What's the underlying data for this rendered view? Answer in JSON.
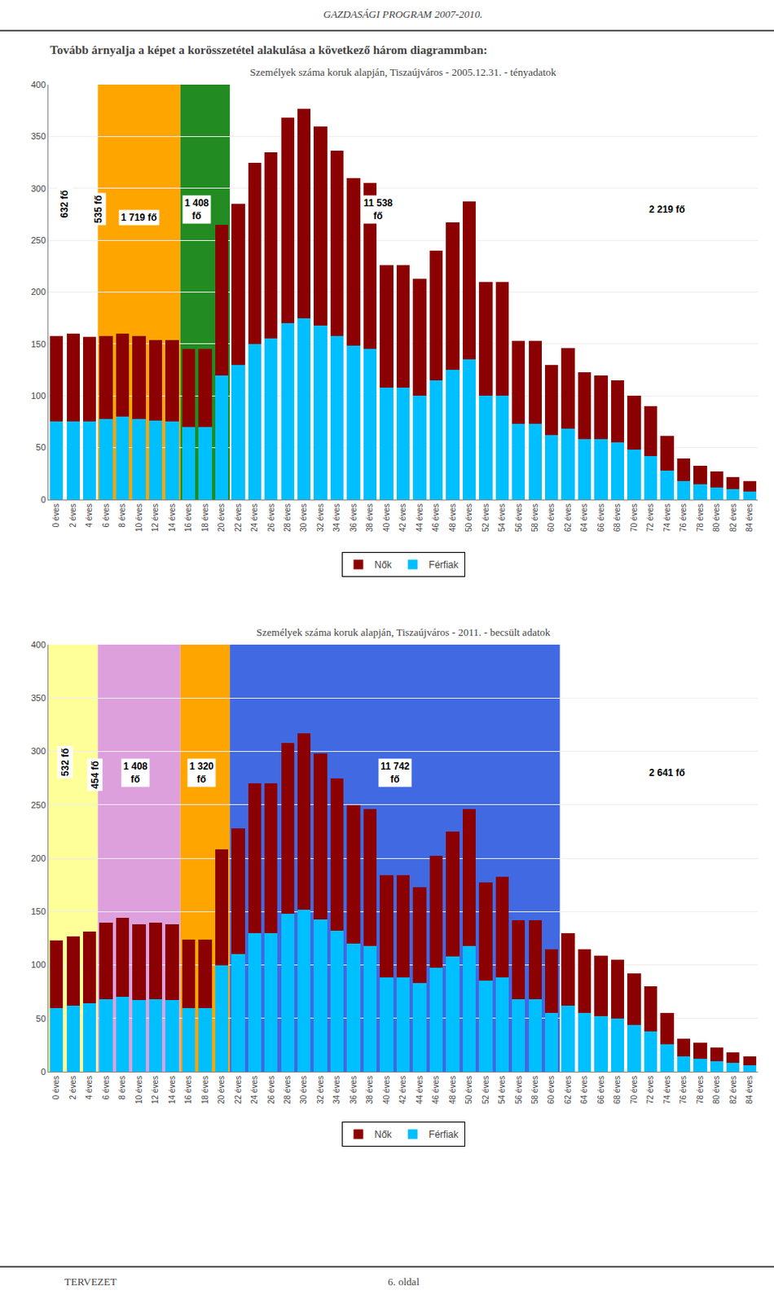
{
  "page_header": "GAZDASÁGI PROGRAM 2007-2010.",
  "intro_text": "Tovább árnyalja a képet a korösszetétel alakulása a következő három diagrammban:",
  "footer_left": "TERVEZET",
  "footer_right": "6. oldal",
  "chart_data": [
    {
      "type": "bar",
      "title": "Személyek száma koruk alapján, Tiszaújváros - 2005.12.31. - tényadatok",
      "categories": [
        "0 éves",
        "2 éves",
        "4 éves",
        "6 éves",
        "8 éves",
        "10 éves",
        "12 éves",
        "14 éves",
        "16 éves",
        "18 éves",
        "20 éves",
        "22 éves",
        "24 éves",
        "26 éves",
        "28 éves",
        "30 éves",
        "32 éves",
        "34 éves",
        "36 éves",
        "38 éves",
        "40 éves",
        "42 éves",
        "44 éves",
        "46 éves",
        "48 éves",
        "50 éves",
        "52 éves",
        "54 éves",
        "56 éves",
        "58 éves",
        "60 éves",
        "62 éves",
        "64 éves",
        "66 éves",
        "68 éves",
        "70 éves",
        "72 éves",
        "74 éves",
        "76 éves",
        "78 éves",
        "80 éves",
        "82 éves",
        "84 éves"
      ],
      "series": [
        {
          "name": "Férfiak",
          "color": "#00BFFF",
          "values": [
            75,
            75,
            75,
            78,
            80,
            78,
            76,
            75,
            70,
            70,
            120,
            130,
            150,
            155,
            170,
            175,
            168,
            158,
            148,
            145,
            108,
            108,
            100,
            115,
            125,
            135,
            100,
            100,
            73,
            73,
            62,
            68,
            58,
            58,
            55,
            48,
            42,
            28,
            18,
            15,
            12,
            10,
            8
          ]
        },
        {
          "name": "Nők",
          "color": "#8B0000",
          "values": [
            83,
            85,
            82,
            80,
            80,
            80,
            78,
            79,
            75,
            75,
            145,
            155,
            175,
            180,
            198,
            202,
            192,
            178,
            162,
            160,
            118,
            118,
            113,
            125,
            142,
            152,
            110,
            110,
            80,
            80,
            68,
            78,
            65,
            62,
            60,
            52,
            48,
            33,
            22,
            18,
            15,
            12,
            10
          ]
        }
      ],
      "stacked": true,
      "ylim": [
        0,
        400
      ],
      "yticks": [
        0,
        50,
        100,
        150,
        200,
        250,
        300,
        350,
        400
      ],
      "grid": true,
      "legend": "bottom",
      "bands": [
        {
          "from": "6 éves",
          "to": "14 éves",
          "color": "#FFA500"
        },
        {
          "from": "16 éves",
          "to": "20 éves",
          "color": "#228B22"
        }
      ],
      "annotations": [
        {
          "x": 0.5,
          "y": 285,
          "text": "632 fő",
          "orientation": "vertical"
        },
        {
          "x": 2.5,
          "y": 280,
          "text": "535 fő",
          "orientation": "vertical"
        },
        {
          "x": 5.0,
          "y": 272,
          "text": "1 719 fő"
        },
        {
          "x": 8.5,
          "y": 280,
          "text": "1 408\nfő"
        },
        {
          "x": 19.5,
          "y": 280,
          "text": "11 538\nfő"
        },
        {
          "x": 37.0,
          "y": 280,
          "text": "2 219 fő"
        }
      ]
    },
    {
      "type": "bar",
      "title": "Személyek száma koruk alapján, Tiszaújváros - 2011. - becsült adatok",
      "categories": [
        "0 éves",
        "2 éves",
        "4 éves",
        "6 éves",
        "8 éves",
        "10 éves",
        "12 éves",
        "14 éves",
        "16 éves",
        "18 éves",
        "20 éves",
        "22 éves",
        "24 éves",
        "26 éves",
        "28 éves",
        "30 éves",
        "32 éves",
        "34 éves",
        "36 éves",
        "38 éves",
        "40 éves",
        "42 éves",
        "44 éves",
        "46 éves",
        "48 éves",
        "50 éves",
        "52 éves",
        "54 éves",
        "56 éves",
        "58 éves",
        "60 éves",
        "62 éves",
        "64 éves",
        "66 éves",
        "68 éves",
        "70 éves",
        "72 éves",
        "74 éves",
        "76 éves",
        "78 éves",
        "80 éves",
        "82 éves",
        "84 éves"
      ],
      "series": [
        {
          "name": "Férfiak",
          "color": "#00BFFF",
          "values": [
            60,
            62,
            64,
            68,
            70,
            67,
            68,
            67,
            60,
            60,
            100,
            110,
            130,
            130,
            148,
            152,
            143,
            132,
            120,
            118,
            88,
            88,
            83,
            97,
            108,
            118,
            85,
            88,
            68,
            68,
            55,
            62,
            55,
            52,
            50,
            44,
            38,
            26,
            14,
            12,
            10,
            8,
            6
          ]
        },
        {
          "name": "Nők",
          "color": "#8B0000",
          "values": [
            63,
            65,
            67,
            72,
            74,
            71,
            72,
            71,
            64,
            64,
            108,
            118,
            140,
            140,
            160,
            165,
            155,
            143,
            130,
            128,
            96,
            96,
            90,
            105,
            117,
            128,
            92,
            95,
            74,
            74,
            60,
            68,
            60,
            57,
            55,
            48,
            42,
            29,
            17,
            15,
            13,
            10,
            8
          ]
        }
      ],
      "stacked": true,
      "ylim": [
        0,
        400
      ],
      "yticks": [
        0,
        50,
        100,
        150,
        200,
        250,
        300,
        350,
        400
      ],
      "grid": true,
      "legend": "bottom",
      "bands": [
        {
          "from": "0 éves",
          "to": "4 éves",
          "color": "#FFFF99"
        },
        {
          "from": "6 éves",
          "to": "14 éves",
          "color": "#DDA0DD"
        },
        {
          "from": "16 éves",
          "to": "20 éves",
          "color": "#FFA500"
        },
        {
          "from": "22 éves",
          "to": "60 éves",
          "color": "#4169E1"
        }
      ],
      "annotations": [
        {
          "x": 0.5,
          "y": 290,
          "text": "532 fő",
          "orientation": "vertical"
        },
        {
          "x": 2.3,
          "y": 278,
          "text": "454 fő",
          "orientation": "vertical"
        },
        {
          "x": 4.8,
          "y": 280,
          "text": "1 408\nfő"
        },
        {
          "x": 8.8,
          "y": 280,
          "text": "1 320\nfő"
        },
        {
          "x": 20.5,
          "y": 280,
          "text": "11 742\nfő"
        },
        {
          "x": 37.0,
          "y": 280,
          "text": "2 641 fő"
        }
      ]
    }
  ]
}
